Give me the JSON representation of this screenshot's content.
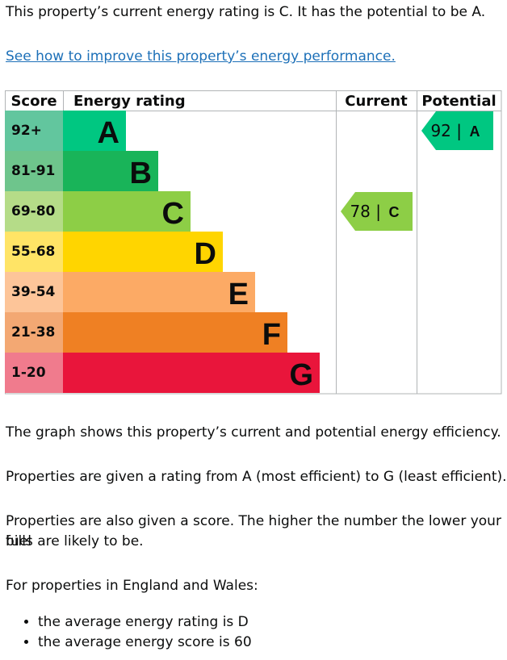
{
  "intro": "This property’s current energy rating is C. It has the potential to be A.",
  "improve_link": "See how to improve this property’s energy performance.",
  "chart_data": {
    "type": "bar",
    "headers": {
      "score": "Score",
      "rating": "Energy rating",
      "current": "Current",
      "potential": "Potential"
    },
    "bands": [
      {
        "letter": "A",
        "range": "92+",
        "color": "#00c781",
        "range_color": "#62c69e"
      },
      {
        "letter": "B",
        "range": "81-91",
        "color": "#19b459",
        "range_color": "#6ec58c"
      },
      {
        "letter": "C",
        "range": "69-80",
        "color": "#8dce46",
        "range_color": "#b5dc88"
      },
      {
        "letter": "D",
        "range": "55-68",
        "color": "#ffd500",
        "range_color": "#ffe466"
      },
      {
        "letter": "E",
        "range": "39-54",
        "color": "#fcaa65",
        "range_color": "#fdc599"
      },
      {
        "letter": "F",
        "range": "21-38",
        "color": "#ef8023",
        "range_color": "#f3a873"
      },
      {
        "letter": "G",
        "range": "1-20",
        "color": "#e9153b",
        "range_color": "#f07b8d"
      }
    ],
    "current": {
      "score": 78,
      "letter": "C",
      "label": "78 |",
      "color": "#8dce46"
    },
    "potential": {
      "score": 92,
      "letter": "A",
      "label": "92 |",
      "color": "#00c781"
    }
  },
  "paragraphs": {
    "graph": "The graph shows this property’s current and potential energy efficiency.",
    "ratings": "Properties are given a rating from A (most efficient) to G (least efficient).",
    "score_line1": "Properties are also given a score. The higher the number the lower your fuel",
    "score_line2": "bills are likely to be.",
    "region": "For properties in England and Wales:"
  },
  "bullets": [
    "the average energy rating is D",
    "the average energy score is 60"
  ]
}
